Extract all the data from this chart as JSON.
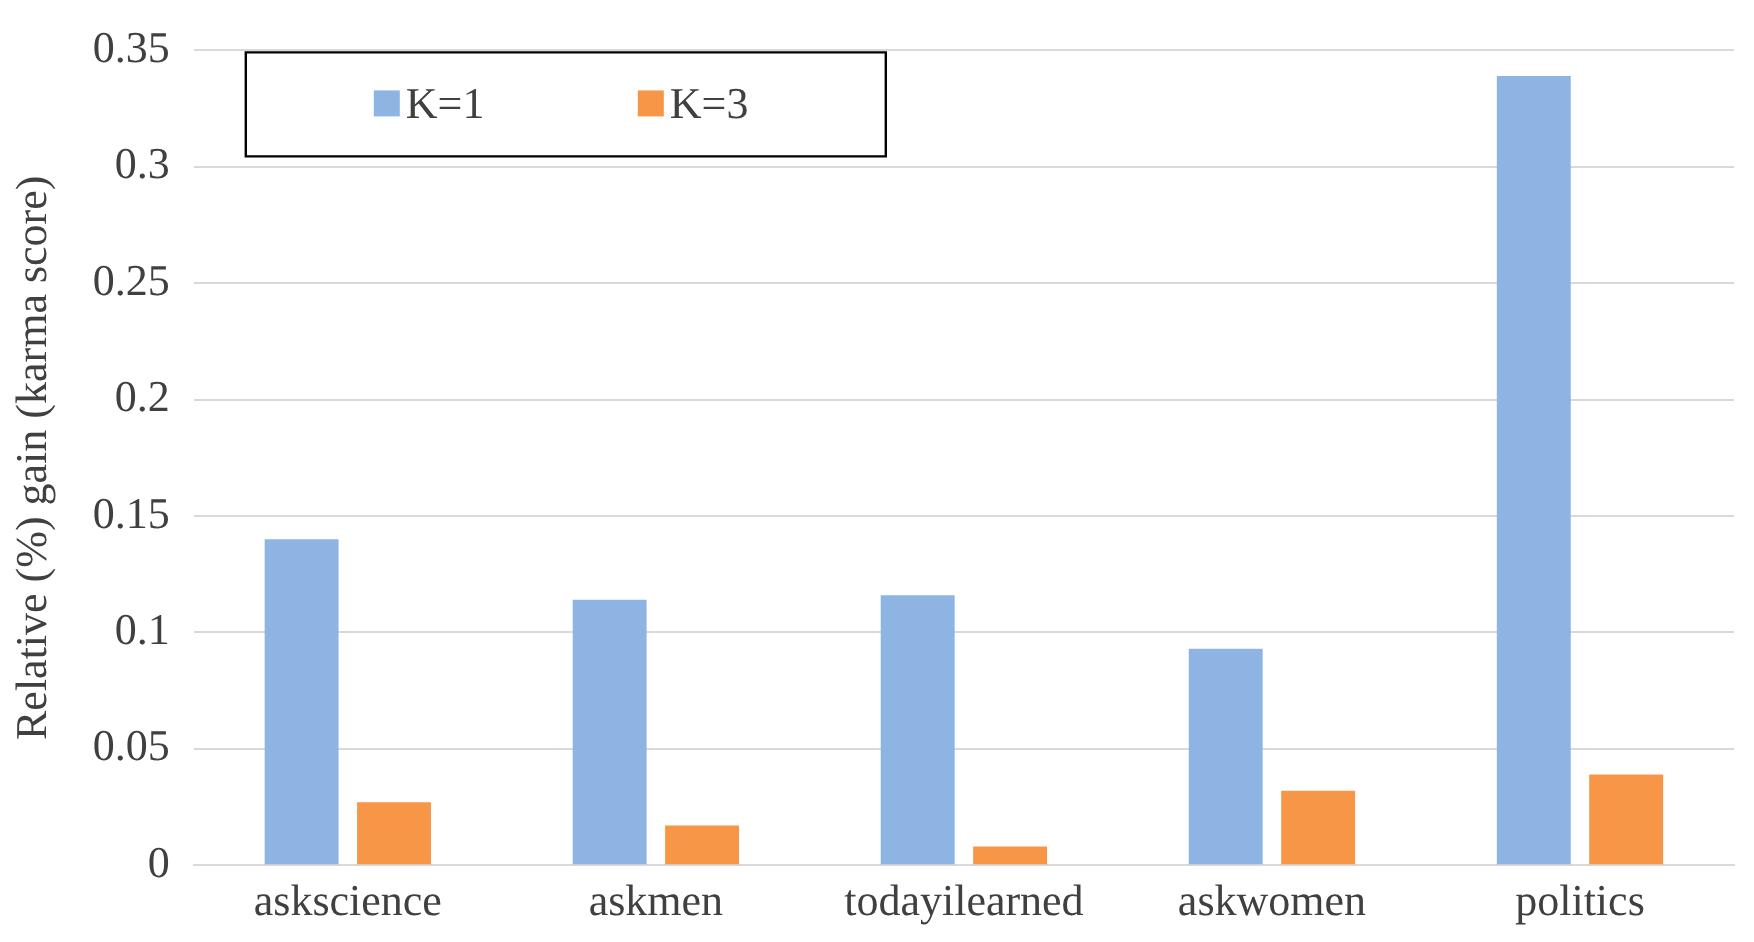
{
  "chart_data": {
    "type": "bar",
    "ylabel": "Relative (%) gain (karma score)",
    "categories": [
      "askscience",
      "askmen",
      "todayilearned",
      "askwomen",
      "politics"
    ],
    "series": [
      {
        "name": "K=1",
        "color": "#8eb4e3",
        "values": [
          0.14,
          0.114,
          0.116,
          0.093,
          0.339
        ]
      },
      {
        "name": "K=3",
        "color": "#f79646",
        "values": [
          0.027,
          0.017,
          0.008,
          0.032,
          0.039
        ]
      }
    ],
    "ylim": [
      0,
      0.35
    ],
    "yticks": [
      0,
      0.05,
      0.1,
      0.15,
      0.2,
      0.25,
      0.3,
      0.35
    ],
    "grid": "y",
    "legend": "top left"
  }
}
